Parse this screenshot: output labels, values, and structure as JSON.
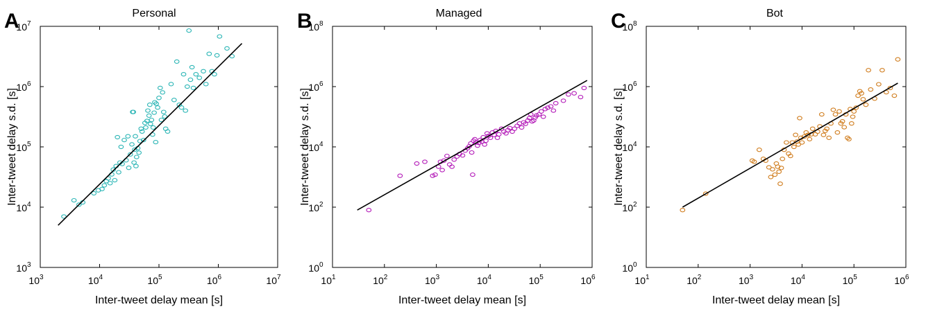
{
  "figure": {
    "colors": {
      "personal": "#2ab5b5",
      "managed": "#b31ab8",
      "bot": "#d07c1c",
      "fit": "#000000"
    }
  },
  "chart_data": [
    {
      "panel": "A",
      "title": "Personal",
      "type": "scatter",
      "xlabel": "Inter-tweet delay mean [s]",
      "ylabel": "Inter-tweet delay s.d. [s]",
      "xscale": "log",
      "yscale": "log",
      "xlim": [
        1000,
        10000000
      ],
      "ylim": [
        1000,
        10000000
      ],
      "xticks": [
        {
          "base": "10",
          "exp": "3"
        },
        {
          "base": "10",
          "exp": "4"
        },
        {
          "base": "10",
          "exp": "5"
        },
        {
          "base": "10",
          "exp": "6"
        },
        {
          "base": "10",
          "exp": "7"
        }
      ],
      "yticks": [
        {
          "base": "10",
          "exp": "3"
        },
        {
          "base": "10",
          "exp": "4"
        },
        {
          "base": "10",
          "exp": "5"
        },
        {
          "base": "10",
          "exp": "6"
        },
        {
          "base": "10",
          "exp": "7"
        }
      ],
      "grid": false,
      "marker": "open-circle",
      "color": "#2ab5b5",
      "fit_line": {
        "x": [
          2000,
          2500000
        ],
        "y": [
          5000,
          5200000
        ]
      },
      "points": [
        [
          2500,
          7000
        ],
        [
          3700,
          13000
        ],
        [
          4500,
          11000
        ],
        [
          5200,
          12000
        ],
        [
          8000,
          17000
        ],
        [
          9500,
          19000
        ],
        [
          11000,
          20000
        ],
        [
          12000,
          23000
        ],
        [
          13000,
          27000
        ],
        [
          14000,
          30000
        ],
        [
          15000,
          25000
        ],
        [
          16000,
          35000
        ],
        [
          17000,
          42000
        ],
        [
          18000,
          28000
        ],
        [
          19000,
          48000
        ],
        [
          20000,
          145000
        ],
        [
          21000,
          38000
        ],
        [
          22000,
          55000
        ],
        [
          23000,
          100000
        ],
        [
          24000,
          52000
        ],
        [
          26000,
          130000
        ],
        [
          28000,
          60000
        ],
        [
          30000,
          150000
        ],
        [
          31000,
          45000
        ],
        [
          33000,
          75000
        ],
        [
          35000,
          110000
        ],
        [
          36000,
          380000
        ],
        [
          37000,
          380000
        ],
        [
          38000,
          55000
        ],
        [
          39000,
          90000
        ],
        [
          40000,
          150000
        ],
        [
          41000,
          48000
        ],
        [
          42000,
          68000
        ],
        [
          44000,
          95000
        ],
        [
          46000,
          80000
        ],
        [
          48000,
          125000
        ],
        [
          50000,
          200000
        ],
        [
          52000,
          180000
        ],
        [
          55000,
          130000
        ],
        [
          58000,
          250000
        ],
        [
          60000,
          210000
        ],
        [
          63000,
          270000
        ],
        [
          65000,
          400000
        ],
        [
          68000,
          330000
        ],
        [
          70000,
          500000
        ],
        [
          72000,
          240000
        ],
        [
          75000,
          280000
        ],
        [
          78000,
          160000
        ],
        [
          80000,
          210000
        ],
        [
          83000,
          370000
        ],
        [
          85000,
          550000
        ],
        [
          88000,
          120000
        ],
        [
          90000,
          520000
        ],
        [
          95000,
          450000
        ],
        [
          100000,
          650000
        ],
        [
          105000,
          950000
        ],
        [
          110000,
          280000
        ],
        [
          115000,
          800000
        ],
        [
          120000,
          380000
        ],
        [
          125000,
          320000
        ],
        [
          130000,
          200000
        ],
        [
          140000,
          180000
        ],
        [
          160000,
          1100000
        ],
        [
          180000,
          600000
        ],
        [
          200000,
          2600000
        ],
        [
          220000,
          500000
        ],
        [
          240000,
          450000
        ],
        [
          260000,
          1600000
        ],
        [
          280000,
          400000
        ],
        [
          300000,
          1000000
        ],
        [
          320000,
          8500000
        ],
        [
          340000,
          1300000
        ],
        [
          360000,
          2100000
        ],
        [
          380000,
          950000
        ],
        [
          420000,
          1600000
        ],
        [
          480000,
          1400000
        ],
        [
          560000,
          1800000
        ],
        [
          620000,
          1100000
        ],
        [
          700000,
          3500000
        ],
        [
          780000,
          1800000
        ],
        [
          860000,
          1600000
        ],
        [
          950000,
          3300000
        ],
        [
          1050000,
          6800000
        ],
        [
          1400000,
          4300000
        ],
        [
          1700000,
          3200000
        ]
      ]
    },
    {
      "panel": "B",
      "title": "Managed",
      "type": "scatter",
      "xlabel": "Inter-tweet delay mean [s]",
      "ylabel": "Inter-tweet delay s.d. [s]",
      "xscale": "log",
      "yscale": "log",
      "xlim": [
        10,
        1000000
      ],
      "ylim": [
        1,
        100000000
      ],
      "xticks": [
        {
          "base": "10",
          "exp": "1"
        },
        {
          "base": "10",
          "exp": "2"
        },
        {
          "base": "10",
          "exp": "3"
        },
        {
          "base": "10",
          "exp": "4"
        },
        {
          "base": "10",
          "exp": "5"
        },
        {
          "base": "10",
          "exp": "6"
        }
      ],
      "yticks": [
        {
          "base": "10",
          "exp": "0"
        },
        {
          "base": "10",
          "exp": "2"
        },
        {
          "base": "10",
          "exp": "4"
        },
        {
          "base": "10",
          "exp": "6"
        },
        {
          "base": "10",
          "exp": "8"
        }
      ],
      "grid": false,
      "marker": "open-circle",
      "color": "#b31ab8",
      "fit_line": {
        "x": [
          30,
          800000
        ],
        "y": [
          80,
          1600000
        ]
      },
      "points": [
        [
          50,
          80
        ],
        [
          200,
          1100
        ],
        [
          420,
          2800
        ],
        [
          600,
          3200
        ],
        [
          850,
          1100
        ],
        [
          950,
          1200
        ],
        [
          1100,
          2200
        ],
        [
          1200,
          3200
        ],
        [
          1300,
          1700
        ],
        [
          1400,
          3500
        ],
        [
          1600,
          5000
        ],
        [
          1800,
          2600
        ],
        [
          2000,
          2200
        ],
        [
          2200,
          3800
        ],
        [
          2500,
          4800
        ],
        [
          2800,
          5800
        ],
        [
          3200,
          5200
        ],
        [
          3600,
          7500
        ],
        [
          4000,
          9000
        ],
        [
          4300,
          10500
        ],
        [
          4600,
          13000
        ],
        [
          4800,
          6500
        ],
        [
          5000,
          1200
        ],
        [
          5200,
          16000
        ],
        [
          5500,
          18000
        ],
        [
          5800,
          14000
        ],
        [
          6200,
          11000
        ],
        [
          6600,
          13500
        ],
        [
          7000,
          17000
        ],
        [
          7500,
          15000
        ],
        [
          8000,
          21000
        ],
        [
          8500,
          12000
        ],
        [
          9000,
          16000
        ],
        [
          9500,
          28000
        ],
        [
          10000,
          23000
        ],
        [
          11000,
          20000
        ],
        [
          12000,
          30000
        ],
        [
          13000,
          25000
        ],
        [
          14000,
          34000
        ],
        [
          15000,
          20000
        ],
        [
          16000,
          26000
        ],
        [
          18000,
          40000
        ],
        [
          20000,
          32000
        ],
        [
          22000,
          28000
        ],
        [
          24000,
          36000
        ],
        [
          26000,
          42000
        ],
        [
          29000,
          32000
        ],
        [
          32000,
          40000
        ],
        [
          36000,
          50000
        ],
        [
          40000,
          60000
        ],
        [
          44000,
          44000
        ],
        [
          48000,
          65000
        ],
        [
          52000,
          58000
        ],
        [
          58000,
          75000
        ],
        [
          62000,
          90000
        ],
        [
          66000,
          120000
        ],
        [
          70000,
          70000
        ],
        [
          75000,
          75000
        ],
        [
          80000,
          95000
        ],
        [
          85000,
          110000
        ],
        [
          95000,
          120000
        ],
        [
          105000,
          150000
        ],
        [
          115000,
          100000
        ],
        [
          125000,
          180000
        ],
        [
          140000,
          200000
        ],
        [
          160000,
          220000
        ],
        [
          180000,
          160000
        ],
        [
          200000,
          280000
        ],
        [
          280000,
          340000
        ],
        [
          350000,
          550000
        ],
        [
          450000,
          600000
        ],
        [
          600000,
          450000
        ],
        [
          700000,
          900000
        ]
      ]
    },
    {
      "panel": "C",
      "title": "Bot",
      "type": "scatter",
      "xlabel": "Inter-tweet delay mean [s]",
      "ylabel": "Inter-tweet delay s.d. [s]",
      "xscale": "log",
      "yscale": "log",
      "xlim": [
        10,
        1000000
      ],
      "ylim": [
        1,
        100000000
      ],
      "xticks": [
        {
          "base": "10",
          "exp": "1"
        },
        {
          "base": "10",
          "exp": "2"
        },
        {
          "base": "10",
          "exp": "3"
        },
        {
          "base": "10",
          "exp": "4"
        },
        {
          "base": "10",
          "exp": "5"
        },
        {
          "base": "10",
          "exp": "6"
        }
      ],
      "yticks": [
        {
          "base": "10",
          "exp": "0"
        },
        {
          "base": "10",
          "exp": "2"
        },
        {
          "base": "10",
          "exp": "4"
        },
        {
          "base": "10",
          "exp": "6"
        },
        {
          "base": "10",
          "exp": "8"
        }
      ],
      "grid": false,
      "marker": "open-circle",
      "color": "#d07c1c",
      "fit_line": {
        "x": [
          50,
          700000
        ],
        "y": [
          100,
          1300000
        ]
      },
      "points": [
        [
          50,
          80
        ],
        [
          140,
          280
        ],
        [
          1100,
          3500
        ],
        [
          1200,
          3200
        ],
        [
          1500,
          8000
        ],
        [
          1800,
          4000
        ],
        [
          2000,
          3500
        ],
        [
          2300,
          2100
        ],
        [
          2500,
          1000
        ],
        [
          2700,
          1800
        ],
        [
          3000,
          1200
        ],
        [
          3200,
          2800
        ],
        [
          3400,
          2200
        ],
        [
          3600,
          1500
        ],
        [
          3800,
          600
        ],
        [
          4000,
          2000
        ],
        [
          4200,
          4000
        ],
        [
          4500,
          8000
        ],
        [
          5000,
          14000
        ],
        [
          5500,
          6000
        ],
        [
          6000,
          5000
        ],
        [
          6500,
          14000
        ],
        [
          7000,
          10000
        ],
        [
          7500,
          25000
        ],
        [
          8000,
          15000
        ],
        [
          8500,
          12000
        ],
        [
          9000,
          90000
        ],
        [
          9500,
          20000
        ],
        [
          10000,
          14000
        ],
        [
          11000,
          22000
        ],
        [
          12000,
          30000
        ],
        [
          13000,
          25000
        ],
        [
          14000,
          18000
        ],
        [
          15000,
          26000
        ],
        [
          16000,
          40000
        ],
        [
          18000,
          26000
        ],
        [
          20000,
          32000
        ],
        [
          22000,
          48000
        ],
        [
          24000,
          120000
        ],
        [
          26000,
          25000
        ],
        [
          28000,
          34000
        ],
        [
          30000,
          40000
        ],
        [
          33000,
          20000
        ],
        [
          36000,
          60000
        ],
        [
          40000,
          170000
        ],
        [
          44000,
          120000
        ],
        [
          48000,
          30000
        ],
        [
          52000,
          150000
        ],
        [
          56000,
          60000
        ],
        [
          60000,
          70000
        ],
        [
          65000,
          45000
        ],
        [
          70000,
          120000
        ],
        [
          75000,
          20000
        ],
        [
          80000,
          18000
        ],
        [
          85000,
          180000
        ],
        [
          90000,
          60000
        ],
        [
          95000,
          100000
        ],
        [
          100000,
          150000
        ],
        [
          110000,
          200000
        ],
        [
          120000,
          500000
        ],
        [
          130000,
          700000
        ],
        [
          140000,
          600000
        ],
        [
          150000,
          380000
        ],
        [
          170000,
          250000
        ],
        [
          190000,
          3500000
        ],
        [
          210000,
          800000
        ],
        [
          250000,
          400000
        ],
        [
          300000,
          1200000
        ],
        [
          350000,
          3500000
        ],
        [
          420000,
          650000
        ],
        [
          500000,
          900000
        ],
        [
          600000,
          500000
        ],
        [
          700000,
          8000000
        ]
      ]
    }
  ]
}
